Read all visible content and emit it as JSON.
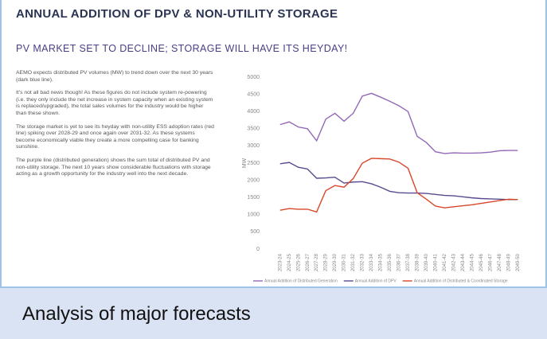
{
  "header": {
    "title": "ANNUAL ADDITION OF DPV & NON-UTILITY STORAGE",
    "subtitle": "PV MARKET SET TO DECLINE; STORAGE WILL HAVE ITS HEYDAY!"
  },
  "paragraphs": [
    "AEMO expects distributed PV volumes (MW) to trend down over the next 30 years (dark blue line).",
    "It's not all bad news though! As these figures do not include system re-powering (i.e. they only include the net increase in system capacity when an existing system is replaced/upgraded), the total sales volumes for the industry would be higher than these shown.",
    "The storage market is yet to see its heyday with non-utility ESS adoption rates (red line) spiking over 2028-29 and once again over 2031-32. As these systems become economically viable they create a more compelling case for banking sunshine.",
    "The purple line (distributed generation) shows the sum total of distributed PV and non-utility storage. The next 10 years show considerable fluctuations with storage acting as a growth opportunity for the industry well into the next decade."
  ],
  "caption": "Analysis of major forecasts",
  "chart_data": {
    "type": "line",
    "y_label": "MW",
    "categories": [
      "2023-24",
      "2024-25",
      "2025-26",
      "2026-27",
      "2027-28",
      "2028-29",
      "2029-30",
      "2030-31",
      "2031-32",
      "2032-33",
      "2033-34",
      "2034-35",
      "2035-36",
      "2036-37",
      "2037-38",
      "2038-39",
      "2039-40",
      "2040-41",
      "2041-42",
      "2042-43",
      "2043-44",
      "2044-45",
      "2045-46",
      "2046-47",
      "2047-48",
      "2048-49",
      "2049-50"
    ],
    "series": [
      {
        "name": "Annual Addition of Distributed Generation",
        "color": "#9468b8",
        "values": [
          3620,
          3700,
          3550,
          3500,
          3150,
          3780,
          3950,
          3720,
          3950,
          4450,
          4530,
          4420,
          4300,
          4170,
          4000,
          3280,
          3100,
          2830,
          2780,
          2800,
          2790,
          2790,
          2800,
          2820,
          2860,
          2870,
          2870
        ]
      },
      {
        "name": "Annual Addition of DPV",
        "color": "#5b4a8f",
        "values": [
          2480,
          2520,
          2380,
          2330,
          2060,
          2070,
          2090,
          1920,
          1950,
          1960,
          1900,
          1800,
          1680,
          1640,
          1630,
          1630,
          1620,
          1590,
          1560,
          1550,
          1520,
          1490,
          1470,
          1460,
          1450,
          1440,
          1440
        ]
      },
      {
        "name": "Annual Addition of Distributed & Coordinated Storage",
        "color": "#d9472b",
        "values": [
          1130,
          1180,
          1160,
          1160,
          1080,
          1700,
          1850,
          1800,
          2050,
          2500,
          2640,
          2630,
          2620,
          2530,
          2350,
          1640,
          1450,
          1250,
          1200,
          1230,
          1260,
          1290,
          1330,
          1370,
          1410,
          1450,
          1440
        ]
      }
    ],
    "ylim": [
      0,
      5000
    ],
    "yticks": [
      0,
      500,
      1000,
      1500,
      2000,
      2500,
      3000,
      3500,
      4000,
      4500,
      5000
    ],
    "grid": false
  }
}
